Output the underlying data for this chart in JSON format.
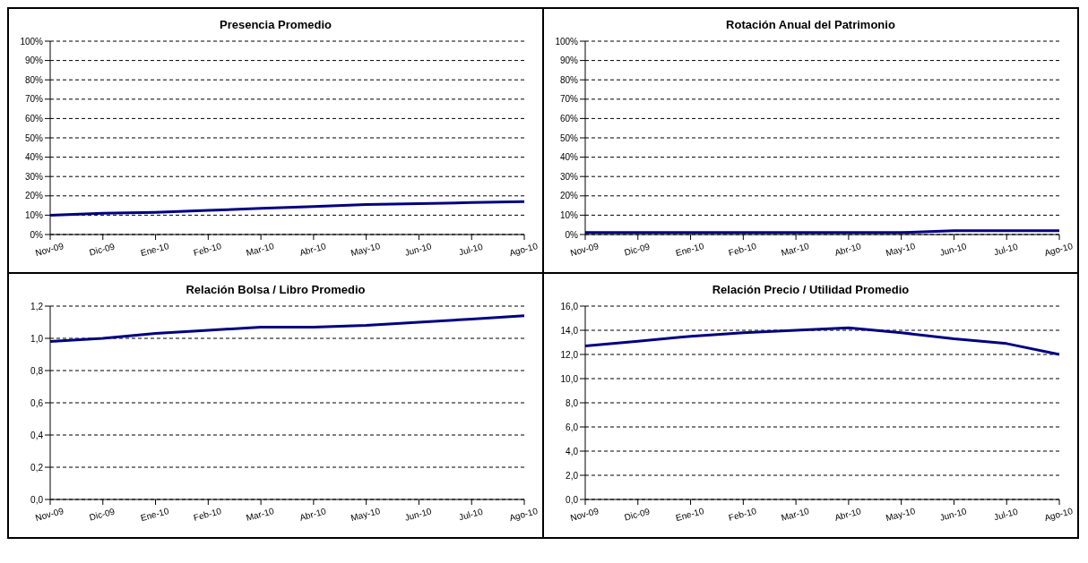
{
  "chart_data": [
    {
      "type": "line",
      "title": "Presencia Promedio",
      "categories": [
        "Nov-09",
        "Dic-09",
        "Ene-10",
        "Feb-10",
        "Mar-10",
        "Abr-10",
        "May-10",
        "Jun-10",
        "Jul-10",
        "Ago-10"
      ],
      "series": [
        {
          "color": "#000080",
          "values": [
            10,
            11,
            11.5,
            12.5,
            13.5,
            14.5,
            15.5,
            16,
            16.5,
            17
          ]
        }
      ],
      "ylim": [
        0,
        100
      ],
      "yticks": [
        {
          "value": 0,
          "label": "0%"
        },
        {
          "value": 10,
          "label": "10%"
        },
        {
          "value": 20,
          "label": "20%"
        },
        {
          "value": 30,
          "label": "30%"
        },
        {
          "value": 40,
          "label": "40%"
        },
        {
          "value": 50,
          "label": "50%"
        },
        {
          "value": 60,
          "label": "60%"
        },
        {
          "value": 70,
          "label": "70%"
        },
        {
          "value": 80,
          "label": "80%"
        },
        {
          "value": 90,
          "label": "90%"
        },
        {
          "value": 100,
          "label": "100%"
        }
      ],
      "grid": "y",
      "legend": false
    },
    {
      "type": "line",
      "title": "Rotación Anual del Patrimonio",
      "categories": [
        "Nov-09",
        "Dic-09",
        "Ene-10",
        "Feb-10",
        "Mar-10",
        "Abr-10",
        "May-10",
        "Jun-10",
        "Jul-10",
        "Ago-10"
      ],
      "series": [
        {
          "color": "#000080",
          "values": [
            1,
            1,
            1,
            1,
            1,
            1,
            1,
            2,
            2,
            2
          ]
        }
      ],
      "ylim": [
        0,
        100
      ],
      "yticks": [
        {
          "value": 0,
          "label": "0%"
        },
        {
          "value": 10,
          "label": "10%"
        },
        {
          "value": 20,
          "label": "20%"
        },
        {
          "value": 30,
          "label": "30%"
        },
        {
          "value": 40,
          "label": "40%"
        },
        {
          "value": 50,
          "label": "50%"
        },
        {
          "value": 60,
          "label": "60%"
        },
        {
          "value": 70,
          "label": "70%"
        },
        {
          "value": 80,
          "label": "80%"
        },
        {
          "value": 90,
          "label": "90%"
        },
        {
          "value": 100,
          "label": "100%"
        }
      ],
      "grid": "y",
      "legend": false
    },
    {
      "type": "line",
      "title": "Relación Bolsa / Libro Promedio",
      "categories": [
        "Nov-09",
        "Dic-09",
        "Ene-10",
        "Feb-10",
        "Mar-10",
        "Abr-10",
        "May-10",
        "Jun-10",
        "Jul-10",
        "Ago-10"
      ],
      "series": [
        {
          "color": "#000080",
          "values": [
            0.98,
            1.0,
            1.03,
            1.05,
            1.07,
            1.07,
            1.08,
            1.1,
            1.12,
            1.14
          ]
        }
      ],
      "ylim": [
        0,
        1.2
      ],
      "yticks": [
        {
          "value": 0,
          "label": "0,0"
        },
        {
          "value": 0.2,
          "label": "0,2"
        },
        {
          "value": 0.4,
          "label": "0,4"
        },
        {
          "value": 0.6,
          "label": "0,6"
        },
        {
          "value": 0.8,
          "label": "0,8"
        },
        {
          "value": 1.0,
          "label": "1,0"
        },
        {
          "value": 1.2,
          "label": "1,2"
        }
      ],
      "grid": "y",
      "legend": false
    },
    {
      "type": "line",
      "title": "Relación Precio / Utilidad Promedio",
      "categories": [
        "Nov-09",
        "Dic-09",
        "Ene-10",
        "Feb-10",
        "Mar-10",
        "Abr-10",
        "May-10",
        "Jun-10",
        "Jul-10",
        "Ago-10"
      ],
      "series": [
        {
          "color": "#000080",
          "values": [
            12.7,
            13.1,
            13.5,
            13.8,
            14.0,
            14.2,
            13.8,
            13.3,
            12.9,
            12.0
          ]
        }
      ],
      "ylim": [
        0,
        16
      ],
      "yticks": [
        {
          "value": 0,
          "label": "0,0"
        },
        {
          "value": 2,
          "label": "2,0"
        },
        {
          "value": 4,
          "label": "4,0"
        },
        {
          "value": 6,
          "label": "6,0"
        },
        {
          "value": 8,
          "label": "8,0"
        },
        {
          "value": 10,
          "label": "10,0"
        },
        {
          "value": 12,
          "label": "12,0"
        },
        {
          "value": 14,
          "label": "14,0"
        },
        {
          "value": 16,
          "label": "16,0"
        }
      ],
      "grid": "y",
      "legend": false
    }
  ]
}
